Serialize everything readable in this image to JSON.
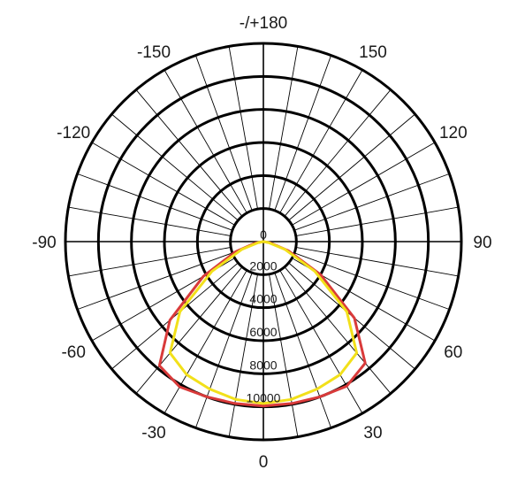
{
  "chart_data": {
    "type": "polar-line",
    "title": "",
    "radial_axis": {
      "min": 0,
      "max": 12000,
      "ring_values": [
        2000,
        4000,
        6000,
        8000,
        10000,
        12000
      ],
      "tick_labels": [
        "0",
        "2000",
        "4000",
        "6000",
        "8000",
        "10000"
      ]
    },
    "angle_axis": {
      "labels": [
        {
          "text": "-/+180",
          "angle": 180
        },
        {
          "text": "150",
          "angle": 150
        },
        {
          "text": "120",
          "angle": 120
        },
        {
          "text": "90",
          "angle": 90
        },
        {
          "text": "60",
          "angle": 60
        },
        {
          "text": "30",
          "angle": 30
        },
        {
          "text": "0",
          "angle": 0
        },
        {
          "text": "-30",
          "angle": -30
        },
        {
          "text": "-60",
          "angle": -60
        },
        {
          "text": "-90",
          "angle": -90
        },
        {
          "text": "-120",
          "angle": -120
        },
        {
          "text": "-150",
          "angle": -150
        }
      ],
      "spoke_step_deg": 10
    },
    "grid": true,
    "series": [
      {
        "color": "#d93a3a",
        "points": [
          [
            -90,
            0
          ],
          [
            -80,
            500
          ],
          [
            -70,
            1800
          ],
          [
            -60,
            4200
          ],
          [
            -50,
            7400
          ],
          [
            -40,
            9800
          ],
          [
            -30,
            10150
          ],
          [
            -20,
            10000
          ],
          [
            -10,
            9950
          ],
          [
            0,
            9950
          ],
          [
            10,
            9950
          ],
          [
            20,
            10000
          ],
          [
            30,
            10100
          ],
          [
            40,
            9600
          ],
          [
            50,
            7200
          ],
          [
            60,
            4000
          ],
          [
            70,
            1600
          ],
          [
            80,
            400
          ],
          [
            90,
            0
          ]
        ]
      },
      {
        "color": "#f2e01a",
        "points": [
          [
            -90,
            0
          ],
          [
            -80,
            300
          ],
          [
            -70,
            1400
          ],
          [
            -60,
            3600
          ],
          [
            -50,
            6600
          ],
          [
            -40,
            8800
          ],
          [
            -30,
            9300
          ],
          [
            -20,
            9500
          ],
          [
            -10,
            9700
          ],
          [
            0,
            9800
          ],
          [
            10,
            9700
          ],
          [
            20,
            9500
          ],
          [
            30,
            9300
          ],
          [
            40,
            8800
          ],
          [
            50,
            6600
          ],
          [
            60,
            3600
          ],
          [
            70,
            1400
          ],
          [
            80,
            300
          ],
          [
            90,
            0
          ]
        ]
      }
    ]
  }
}
